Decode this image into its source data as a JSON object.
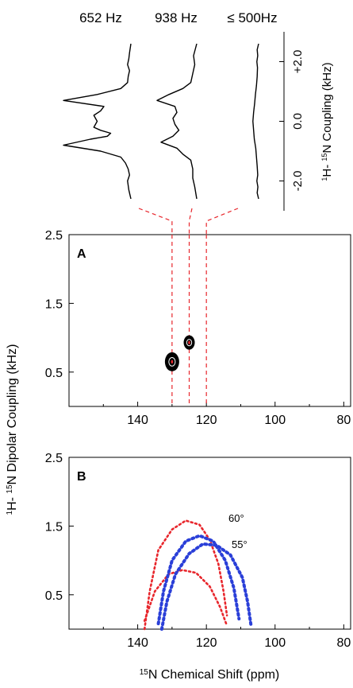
{
  "chart_data": [
    {
      "type": "line",
      "panel": "top-slices",
      "column_labels": [
        "652 Hz",
        "938 Hz",
        "≤ 500Hz"
      ],
      "ylabel_html": "<tspan baseline-shift='super' font-size='9'>1</tspan>H- <tspan baseline-shift='super' font-size='9'>15</tspan>N Coupling (kHz)",
      "ytick_labels": [
        "+2.0",
        "0.0",
        "-2.0"
      ],
      "ylim": [
        -3,
        3
      ],
      "series": [
        {
          "label_index": 0,
          "y": [
            -2.6,
            -2.3,
            -2.0,
            -1.8,
            -1.6,
            -1.4,
            -1.2,
            -1.0,
            -0.8,
            -0.6,
            -0.5,
            -0.4,
            -0.3,
            -0.2,
            0.0,
            0.2,
            0.35,
            0.5,
            0.7,
            0.9,
            1.1,
            1.3,
            1.5,
            1.7,
            1.9,
            2.1,
            2.3,
            2.6
          ],
          "intensity": [
            0,
            0.03,
            0.05,
            0.02,
            0.04,
            0.08,
            0.15,
            0.45,
            1.0,
            0.6,
            0.35,
            0.3,
            0.45,
            0.55,
            0.5,
            0.55,
            0.45,
            0.4,
            1.0,
            0.5,
            0.15,
            0.05,
            0.04,
            0.02,
            0.05,
            0.03,
            0.02,
            0
          ]
        },
        {
          "label_index": 1,
          "y": [
            -2.6,
            -2.2,
            -1.9,
            -1.6,
            -1.3,
            -1.1,
            -0.9,
            -0.7,
            -0.5,
            -0.3,
            -0.1,
            0.1,
            0.3,
            0.5,
            0.7,
            0.9,
            1.1,
            1.3,
            1.6,
            1.9,
            2.2,
            2.6
          ],
          "intensity": [
            0,
            0.05,
            0.1,
            0.1,
            0.15,
            0.35,
            0.5,
            0.9,
            0.6,
            0.45,
            0.55,
            0.6,
            0.5,
            0.55,
            1.0,
            0.7,
            0.35,
            0.15,
            0.1,
            0.05,
            0.08,
            0
          ]
        },
        {
          "label_index": 2,
          "y": [
            -2.6,
            -2.4,
            -2.2,
            -2.0,
            -1.8,
            -1.5,
            -1.2,
            -0.9,
            -0.6,
            -0.3,
            0.0,
            0.3,
            0.6,
            0.9,
            1.2,
            1.5,
            1.8,
            2.0,
            2.2,
            2.4,
            2.6
          ],
          "intensity": [
            0,
            0.1,
            0.05,
            0.12,
            0.06,
            0.1,
            0.15,
            0.2,
            0.3,
            0.35,
            0.4,
            0.35,
            0.28,
            0.22,
            0.15,
            0.1,
            0.08,
            0.12,
            0.06,
            0.1,
            0
          ]
        }
      ]
    },
    {
      "type": "scatter",
      "panel": "A",
      "panel_label": "A",
      "points": [
        {
          "x": 130,
          "y": 0.65
        },
        {
          "x": 125,
          "y": 0.93
        }
      ],
      "slice_lines_x": [
        130,
        125,
        120
      ],
      "xlim": [
        160,
        78
      ],
      "ylim": [
        0,
        2.5
      ],
      "xtick_values": [
        140,
        120,
        100,
        80
      ],
      "xtick_labels": [
        "140",
        "120",
        "100",
        "80"
      ],
      "ytick_values": [
        0.5,
        1.5,
        2.5
      ],
      "ytick_labels": [
        "0.5",
        "1.5",
        "2.5"
      ]
    },
    {
      "type": "line",
      "panel": "B",
      "panel_label": "B",
      "xlim": [
        160,
        78
      ],
      "ylim": [
        0,
        2.5
      ],
      "xtick_values": [
        140,
        120,
        100,
        80
      ],
      "xtick_labels": [
        "140",
        "120",
        "100",
        "80"
      ],
      "ytick_values": [
        0.5,
        1.5,
        2.5
      ],
      "ytick_labels": [
        "0.5",
        "1.5",
        "2.5"
      ],
      "series": [
        {
          "color": "#e8262c",
          "x": [
            138,
            136.5,
            134,
            130,
            126,
            122,
            119,
            116.5,
            115,
            114
          ],
          "y": [
            0.0,
            0.55,
            1.15,
            1.45,
            1.58,
            1.52,
            1.3,
            0.95,
            0.55,
            0.2
          ]
        },
        {
          "color": "#e8262c",
          "x": [
            138,
            135,
            131,
            127,
            123,
            119,
            116,
            114
          ],
          "y": [
            0.12,
            0.55,
            0.8,
            0.86,
            0.82,
            0.62,
            0.32,
            0.05
          ]
        },
        {
          "color": "#2a3fd8",
          "x": [
            134,
            132.5,
            130,
            126,
            122,
            118,
            114.5,
            112,
            110.5
          ],
          "y": [
            0.08,
            0.55,
            1.0,
            1.28,
            1.36,
            1.28,
            1.0,
            0.6,
            0.15
          ]
        },
        {
          "color": "#2a3fd8",
          "x": [
            133,
            131.5,
            129,
            125,
            121,
            117,
            113,
            109.5,
            108,
            107
          ],
          "y": [
            0.0,
            0.4,
            0.8,
            1.1,
            1.24,
            1.22,
            1.08,
            0.75,
            0.4,
            0.05
          ]
        }
      ],
      "annotations": [
        "60°",
        "55°"
      ]
    }
  ],
  "shared": {
    "ylabel_html": "<tspan baseline-shift='super' font-size='10'>1</tspan>H- <tspan baseline-shift='super' font-size='10'>15</tspan>N Dipolar Coupling (kHz)",
    "xlabel_html": "<tspan baseline-shift='super' font-size='10'>15</tspan>N Chemical Shift (ppm)"
  }
}
